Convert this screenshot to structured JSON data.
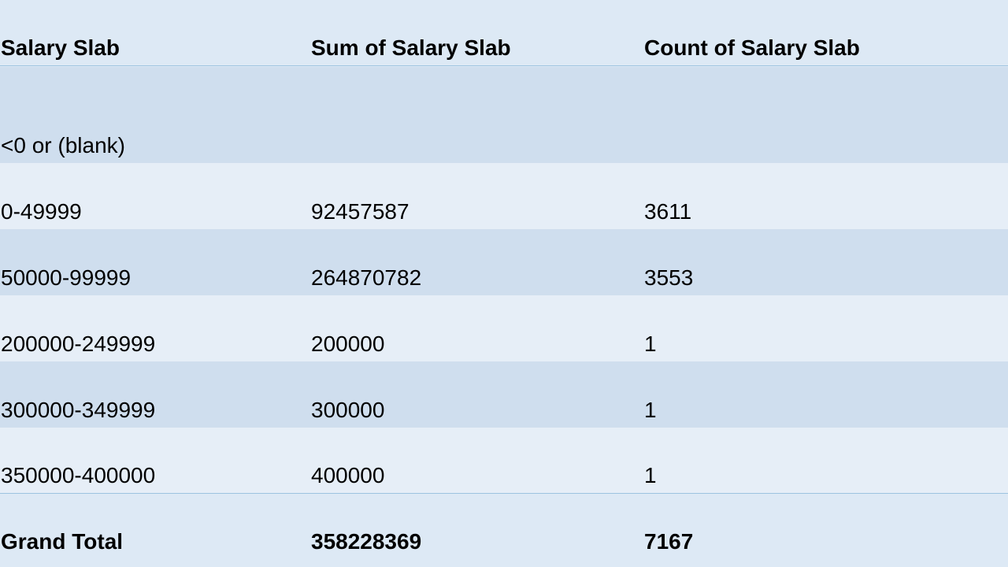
{
  "table": {
    "headers": [
      "Salary Slab",
      "Sum of Salary Slab",
      "Count of Salary Slab"
    ],
    "rows": [
      {
        "slab": "<0 or (blank)",
        "sum": "",
        "count": ""
      },
      {
        "slab": "0-49999",
        "sum": "92457587",
        "count": "3611"
      },
      {
        "slab": "50000-99999",
        "sum": "264870782",
        "count": "3553"
      },
      {
        "slab": "200000-249999",
        "sum": "200000",
        "count": "1"
      },
      {
        "slab": "300000-349999",
        "sum": "300000",
        "count": "1"
      },
      {
        "slab": "350000-400000",
        "sum": "400000",
        "count": "1"
      }
    ],
    "total": {
      "label": "Grand Total",
      "sum": "358228369",
      "count": "7167"
    }
  },
  "colors": {
    "background": "#dde9f5",
    "band_dark": "#cfdeee",
    "band_light": "#e6eef7",
    "rule": "#9dc3e0"
  }
}
